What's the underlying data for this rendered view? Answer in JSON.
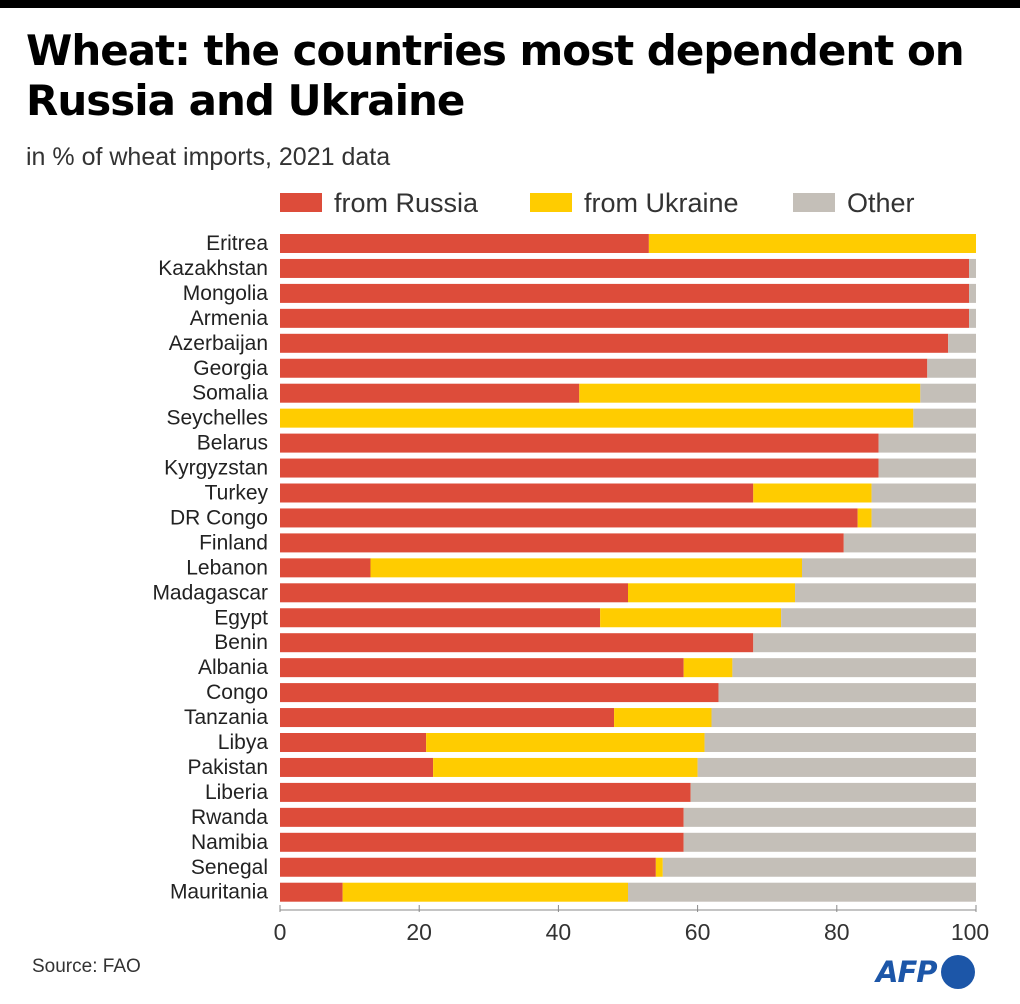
{
  "header": {
    "title": "Wheat: the countries most dependent on Russia and Ukraine",
    "subtitle": "in % of wheat imports, 2021 data"
  },
  "footer": {
    "source": "Source: FAO",
    "logo_text": "AFP"
  },
  "colors": {
    "russia": "#dd4c3a",
    "ukraine": "#ffcc00",
    "other": "#c4bfb8",
    "logo": "#1c56a8"
  },
  "chart_data": {
    "type": "bar",
    "orientation": "horizontal",
    "stacked": true,
    "title": "Wheat: the countries most dependent on Russia and Ukraine",
    "subtitle": "in % of wheat imports, 2021 data",
    "xlabel": "",
    "ylabel": "",
    "xlim": [
      0,
      100
    ],
    "xticks": [
      0,
      20,
      40,
      60,
      80,
      100
    ],
    "legend_position": "top",
    "grid": false,
    "categories": [
      "Eritrea",
      "Kazakhstan",
      "Mongolia",
      "Armenia",
      "Azerbaijan",
      "Georgia",
      "Somalia",
      "Seychelles",
      "Belarus",
      "Kyrgyzstan",
      "Turkey",
      "DR Congo",
      "Finland",
      "Lebanon",
      "Madagascar",
      "Egypt",
      "Benin",
      "Albania",
      "Congo",
      "Tanzania",
      "Libya",
      "Pakistan",
      "Liberia",
      "Rwanda",
      "Namibia",
      "Senegal",
      "Mauritania"
    ],
    "series": [
      {
        "name": "from Russia",
        "color_key": "russia",
        "values": [
          53,
          99,
          99,
          99,
          96,
          93,
          43,
          0,
          86,
          86,
          68,
          83,
          81,
          13,
          50,
          46,
          68,
          58,
          63,
          48,
          21,
          22,
          59,
          58,
          58,
          54,
          9
        ]
      },
      {
        "name": "from Ukraine",
        "color_key": "ukraine",
        "values": [
          47,
          0,
          0,
          0,
          0,
          0,
          49,
          91,
          0,
          0,
          17,
          2,
          0,
          62,
          24,
          26,
          0,
          7,
          0,
          14,
          40,
          38,
          0,
          0,
          0,
          1,
          41
        ]
      },
      {
        "name": "Other",
        "color_key": "other",
        "values": [
          0,
          1,
          1,
          1,
          4,
          7,
          8,
          9,
          14,
          14,
          15,
          15,
          19,
          25,
          26,
          28,
          32,
          35,
          37,
          38,
          39,
          40,
          41,
          42,
          42,
          45,
          50
        ]
      }
    ]
  }
}
